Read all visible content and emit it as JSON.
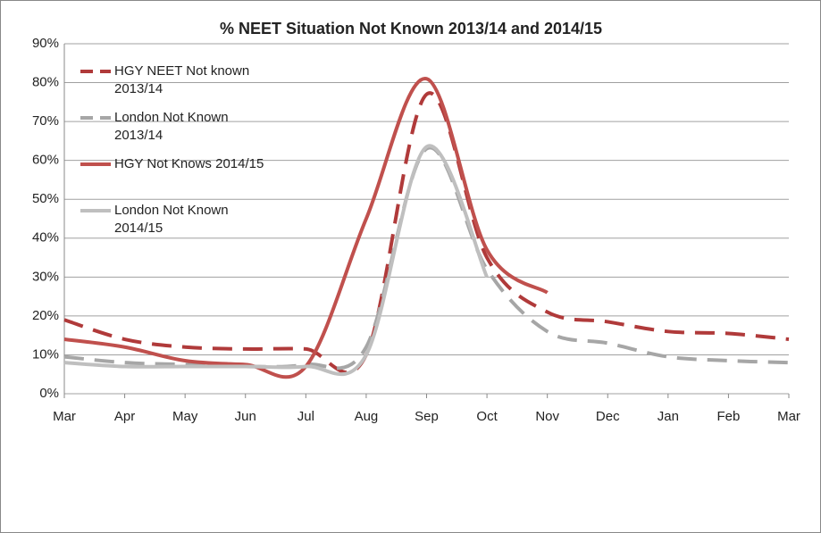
{
  "chart_data": {
    "type": "line",
    "title": "% NEET Situation Not Known 2013/14 and 2014/15",
    "categories": [
      "Mar",
      "Apr",
      "May",
      "Jun",
      "Jul",
      "Aug",
      "Sep",
      "Oct",
      "Nov",
      "Dec",
      "Jan",
      "Feb",
      "Mar"
    ],
    "series": [
      {
        "name": "HGY NEET Not known 2013/14",
        "color": "#b03a3a",
        "dashed": true,
        "values": [
          19,
          14,
          12,
          11.5,
          11.5,
          10,
          77,
          35,
          21,
          18.5,
          16,
          15.5,
          14
        ]
      },
      {
        "name": "London Not Known 2013/14",
        "color": "#a6a6a6",
        "dashed": true,
        "values": [
          9.5,
          8,
          7.5,
          7,
          7.5,
          12,
          63,
          32,
          16,
          13,
          9.5,
          8.5,
          8
        ]
      },
      {
        "name": "HGY Not Knows 2014/15",
        "color": "#c0504d",
        "dashed": false,
        "values": [
          14,
          12,
          8.5,
          7.5,
          7,
          45,
          81,
          37,
          26,
          null,
          null,
          null,
          null
        ]
      },
      {
        "name": "London Not Known 2014/15",
        "color": "#bfbfbf",
        "dashed": false,
        "values": [
          8,
          7,
          7,
          7,
          7,
          10,
          63.5,
          30,
          null,
          null,
          null,
          null,
          null
        ]
      }
    ],
    "ylim": [
      0,
      90
    ],
    "yticks": [
      {
        "value": 0,
        "label": "0%"
      },
      {
        "value": 10,
        "label": "10%"
      },
      {
        "value": 20,
        "label": "20%"
      },
      {
        "value": 30,
        "label": "30%"
      },
      {
        "value": 40,
        "label": "40%"
      },
      {
        "value": 50,
        "label": "50%"
      },
      {
        "value": 60,
        "label": "60%"
      },
      {
        "value": 70,
        "label": "70%"
      },
      {
        "value": 80,
        "label": "80%"
      },
      {
        "value": 90,
        "label": "90%"
      }
    ],
    "grid": true
  }
}
